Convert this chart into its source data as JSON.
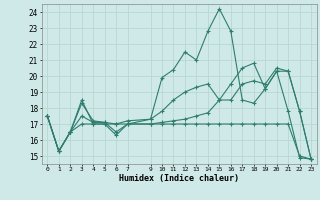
{
  "title": "",
  "xlabel": "Humidex (Indice chaleur)",
  "background_color": "#cfe9e9",
  "grid_color": "#b8d8d0",
  "line_color": "#2e7d6e",
  "xlim": [
    -0.5,
    23.5
  ],
  "ylim": [
    14.5,
    24.5
  ],
  "xticks": [
    0,
    1,
    2,
    3,
    4,
    5,
    6,
    7,
    9,
    10,
    11,
    12,
    13,
    14,
    15,
    16,
    17,
    18,
    19,
    20,
    21,
    22,
    23
  ],
  "yticks": [
    15,
    16,
    17,
    18,
    19,
    20,
    21,
    22,
    23,
    24
  ],
  "lines": [
    {
      "x": [
        0,
        1,
        2,
        3,
        4,
        5,
        6,
        7,
        9,
        10,
        11,
        12,
        13,
        14,
        15,
        16,
        17,
        18,
        19,
        20,
        21,
        22,
        23
      ],
      "y": [
        17.5,
        15.3,
        16.5,
        18.5,
        17.0,
        17.0,
        16.3,
        17.0,
        17.3,
        19.9,
        20.4,
        21.5,
        21.0,
        22.8,
        24.2,
        22.8,
        18.5,
        18.3,
        19.2,
        20.3,
        17.8,
        14.9,
        14.8
      ]
    },
    {
      "x": [
        0,
        1,
        2,
        3,
        4,
        5,
        6,
        7,
        9,
        10,
        11,
        12,
        13,
        14,
        15,
        16,
        17,
        18,
        19,
        20,
        21,
        22,
        23
      ],
      "y": [
        17.5,
        15.3,
        16.5,
        18.3,
        17.2,
        17.1,
        17.0,
        17.2,
        17.3,
        17.8,
        18.5,
        19.0,
        19.3,
        19.5,
        18.5,
        19.5,
        20.5,
        20.8,
        19.2,
        20.3,
        20.3,
        17.8,
        14.8
      ]
    },
    {
      "x": [
        0,
        1,
        2,
        3,
        4,
        5,
        6,
        7,
        9,
        10,
        11,
        12,
        13,
        14,
        15,
        16,
        17,
        18,
        19,
        20,
        21,
        22,
        23
      ],
      "y": [
        17.5,
        15.3,
        16.5,
        17.5,
        17.1,
        17.1,
        16.5,
        17.0,
        17.0,
        17.1,
        17.2,
        17.3,
        17.5,
        17.7,
        18.5,
        18.5,
        19.5,
        19.7,
        19.5,
        20.5,
        20.3,
        17.8,
        14.8
      ]
    },
    {
      "x": [
        0,
        1,
        2,
        3,
        4,
        5,
        6,
        7,
        9,
        10,
        11,
        12,
        13,
        14,
        15,
        16,
        17,
        18,
        19,
        20,
        21,
        22,
        23
      ],
      "y": [
        17.5,
        15.3,
        16.5,
        17.0,
        17.0,
        17.0,
        17.0,
        17.0,
        17.0,
        17.0,
        17.0,
        17.0,
        17.0,
        17.0,
        17.0,
        17.0,
        17.0,
        17.0,
        17.0,
        17.0,
        17.0,
        15.0,
        14.8
      ]
    }
  ]
}
